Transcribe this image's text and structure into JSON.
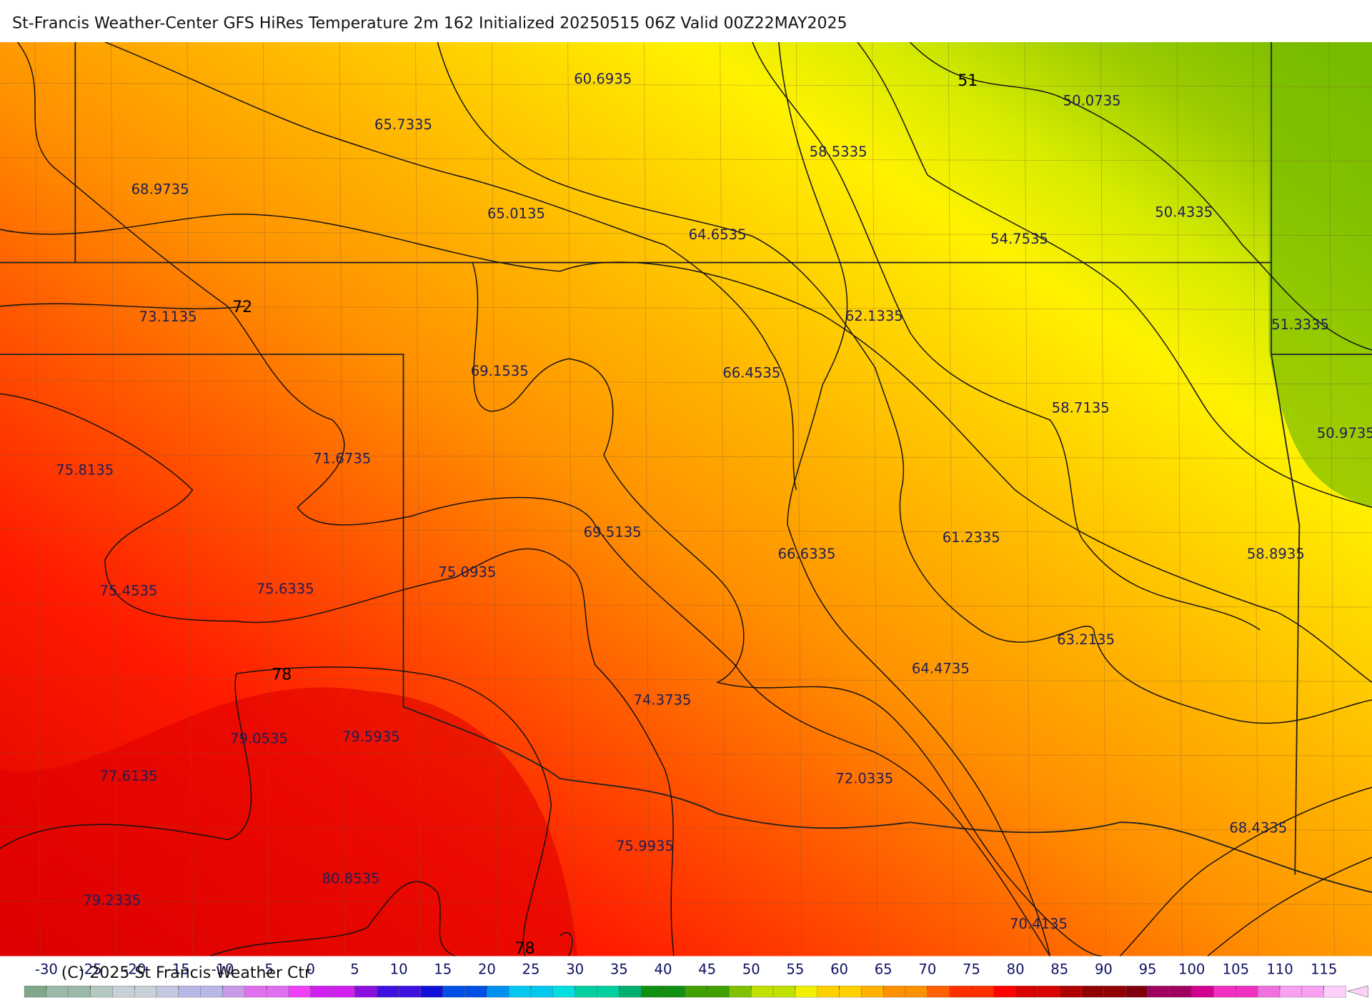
{
  "header": {
    "title": "St-Francis Weather-Center GFS HiRes Temperature 2m  162 Initialized 20250515 06Z Valid 00Z22MAY2025"
  },
  "map": {
    "values": [
      "60.6935",
      "65.7335",
      "68.9735",
      "65.0135",
      "64.6535",
      "58.5335",
      "50.0735",
      "50.4335",
      "54.7535",
      "73.1135",
      "62.1335",
      "51.3335",
      "69.1535",
      "66.4535",
      "58.7135",
      "50.9735",
      "75.8135",
      "71.6735",
      "69.5135",
      "66.6335",
      "61.2335",
      "58.8935",
      "75.4535",
      "75.6335",
      "75.0935",
      "63.2135",
      "64.4735",
      "74.3735",
      "79.0535",
      "79.5935",
      "77.6135",
      "72.0335",
      "68.4335",
      "75.9935",
      "80.8535",
      "79.2335",
      "70.4135"
    ],
    "contour_labels": [
      "51",
      "72",
      "78",
      "78"
    ]
  },
  "colorbar": {
    "ticks": [
      -30,
      -25,
      -20,
      -15,
      -10,
      -5,
      0,
      5,
      10,
      15,
      20,
      25,
      30,
      35,
      40,
      45,
      50,
      55,
      60,
      65,
      70,
      75,
      80,
      85,
      90,
      95,
      100,
      105,
      110,
      115
    ]
  },
  "footer": {
    "copyright": "(C) 2025 St Francis Weather Ctr"
  }
}
